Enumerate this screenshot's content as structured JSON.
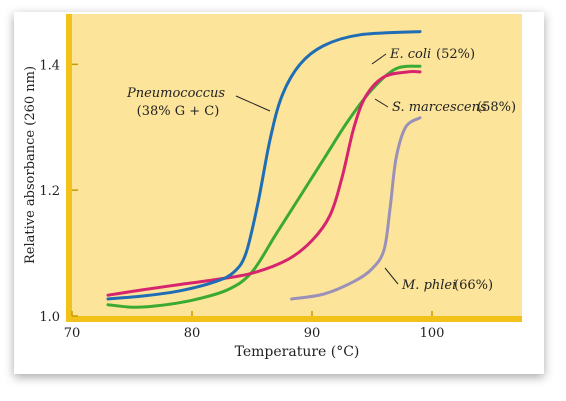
{
  "chart_data": {
    "type": "line",
    "title": "",
    "xlabel": "Temperature (°C)",
    "ylabel": "Relative absorbance (260 nm)",
    "xlim": [
      70,
      107.5
    ],
    "ylim": [
      1.0,
      1.48
    ],
    "xticks": [
      {
        "value": 70,
        "label": "70"
      },
      {
        "value": 80,
        "label": "80"
      },
      {
        "value": 90,
        "label": "90"
      },
      {
        "value": 100,
        "label": "100"
      }
    ],
    "yticks": [
      {
        "value": 1.0,
        "label": "1.0"
      },
      {
        "value": 1.2,
        "label": "1.2"
      },
      {
        "value": 1.4,
        "label": "1.4"
      }
    ],
    "grid": false,
    "colors": {
      "plot_background": "#fce49a",
      "frame": "#f2c21a",
      "axis_text": "#222222"
    },
    "series": [
      {
        "key": "pneumococcus",
        "color": "#1f6db5",
        "label_name": "Pneumococcus",
        "label_detail": "(38% G + C)",
        "points": [
          [
            73,
            1.027
          ],
          [
            76,
            1.032
          ],
          [
            79,
            1.04
          ],
          [
            82,
            1.055
          ],
          [
            83.5,
            1.07
          ],
          [
            84.5,
            1.1
          ],
          [
            85.5,
            1.18
          ],
          [
            86.5,
            1.28
          ],
          [
            87.5,
            1.35
          ],
          [
            89,
            1.4
          ],
          [
            91,
            1.43
          ],
          [
            94,
            1.447
          ],
          [
            99,
            1.452
          ]
        ]
      },
      {
        "key": "e_coli",
        "color": "#3aaa35",
        "label_name": "E. coli",
        "label_detail": "(52%)",
        "points": [
          [
            73,
            1.018
          ],
          [
            75,
            1.014
          ],
          [
            77,
            1.016
          ],
          [
            80,
            1.025
          ],
          [
            83,
            1.042
          ],
          [
            85,
            1.07
          ],
          [
            87,
            1.13
          ],
          [
            89,
            1.19
          ],
          [
            91,
            1.25
          ],
          [
            93,
            1.31
          ],
          [
            95,
            1.36
          ],
          [
            97,
            1.393
          ],
          [
            99,
            1.397
          ]
        ]
      },
      {
        "key": "s_marcescens",
        "color": "#d6246e",
        "label_name": "S. marcescens",
        "label_detail": "(58%)",
        "points": [
          [
            73,
            1.033
          ],
          [
            76,
            1.042
          ],
          [
            79,
            1.05
          ],
          [
            82,
            1.058
          ],
          [
            85,
            1.068
          ],
          [
            88,
            1.09
          ],
          [
            90,
            1.12
          ],
          [
            91.5,
            1.16
          ],
          [
            92.5,
            1.22
          ],
          [
            93.5,
            1.3
          ],
          [
            94.5,
            1.35
          ],
          [
            96,
            1.38
          ],
          [
            98,
            1.388
          ],
          [
            99,
            1.388
          ]
        ]
      },
      {
        "key": "m_phlei",
        "color": "#9b91b8",
        "label_name": "M. phlei",
        "label_detail": "(66%)",
        "points": [
          [
            88.3,
            1.027
          ],
          [
            91,
            1.035
          ],
          [
            93.5,
            1.055
          ],
          [
            95,
            1.075
          ],
          [
            96,
            1.105
          ],
          [
            96.5,
            1.17
          ],
          [
            97,
            1.25
          ],
          [
            97.8,
            1.3
          ],
          [
            99,
            1.315
          ]
        ]
      }
    ]
  }
}
